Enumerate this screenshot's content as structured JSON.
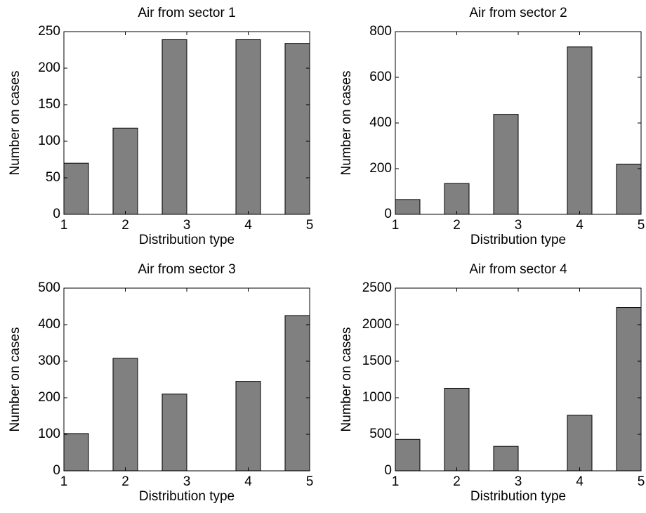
{
  "chart_data": [
    {
      "type": "histogram",
      "title": "Air from sector 1",
      "xlabel": "Distribution type",
      "ylabel": "Number on cases",
      "bins": [
        1,
        1.4,
        1.8,
        2.2,
        2.6,
        3,
        3.4,
        3.8,
        4.2,
        4.6,
        5
      ],
      "values": [
        70,
        0,
        118,
        0,
        239,
        0,
        0,
        239,
        0,
        234
      ],
      "color": "#808080",
      "xlim": [
        1,
        5
      ],
      "ylim": [
        0,
        250
      ],
      "xticks": [
        1,
        2,
        3,
        4,
        5
      ],
      "yticks": [
        0,
        50,
        100,
        150,
        200,
        250
      ]
    },
    {
      "type": "histogram",
      "title": "Air from sector 2",
      "xlabel": "Distribution type",
      "ylabel": "Number on cases",
      "bins": [
        1,
        1.4,
        1.8,
        2.2,
        2.6,
        3,
        3.4,
        3.8,
        4.2,
        4.6,
        5
      ],
      "values": [
        65,
        0,
        135,
        0,
        438,
        0,
        0,
        733,
        0,
        220
      ],
      "color": "#808080",
      "xlim": [
        1,
        5
      ],
      "ylim": [
        0,
        800
      ],
      "xticks": [
        1,
        2,
        3,
        4,
        5
      ],
      "yticks": [
        0,
        200,
        400,
        600,
        800
      ]
    },
    {
      "type": "histogram",
      "title": "Air from sector 3",
      "xlabel": "Distribution type",
      "ylabel": "Number on cases",
      "bins": [
        1,
        1.4,
        1.8,
        2.2,
        2.6,
        3,
        3.4,
        3.8,
        4.2,
        4.6,
        5
      ],
      "values": [
        102,
        0,
        308,
        0,
        210,
        0,
        0,
        245,
        0,
        425
      ],
      "color": "#808080",
      "xlim": [
        1,
        5
      ],
      "ylim": [
        0,
        500
      ],
      "xticks": [
        1,
        2,
        3,
        4,
        5
      ],
      "yticks": [
        0,
        100,
        200,
        300,
        400,
        500
      ]
    },
    {
      "type": "histogram",
      "title": "Air from sector 4",
      "xlabel": "Distribution type",
      "ylabel": "Number on cases",
      "bins": [
        1,
        1.4,
        1.8,
        2.2,
        2.6,
        3,
        3.4,
        3.8,
        4.2,
        4.6,
        5
      ],
      "values": [
        430,
        0,
        1130,
        0,
        335,
        0,
        0,
        760,
        0,
        2235
      ],
      "color": "#808080",
      "xlim": [
        1,
        5
      ],
      "ylim": [
        0,
        2500
      ],
      "xticks": [
        1,
        2,
        3,
        4,
        5
      ],
      "yticks": [
        0,
        500,
        1000,
        1500,
        2000,
        2500
      ]
    }
  ]
}
